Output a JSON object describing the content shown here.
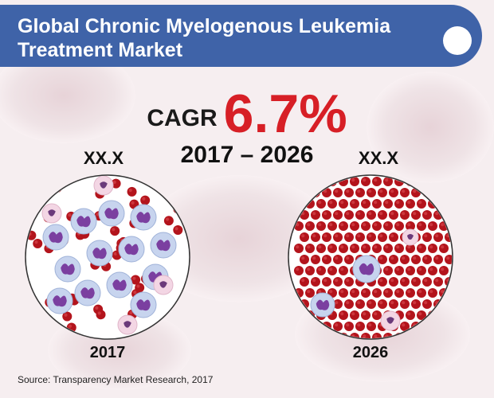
{
  "title": "Global Chronic Myelogenous Leukemia Treatment Market",
  "cagr": {
    "label": "CAGR",
    "value": "6.7%",
    "period": "2017 – 2026"
  },
  "panels": [
    {
      "value_label": "XX.X",
      "year": "2017"
    },
    {
      "value_label": "XX.X",
      "year": "2026"
    }
  ],
  "source": "Source: Transparency Market Research, 2017",
  "colors": {
    "banner": "#3f63a8",
    "cagr_value": "#d71f26",
    "red_cell": "#b3141c",
    "white_cell_nucleus": "#7b3fa0"
  }
}
